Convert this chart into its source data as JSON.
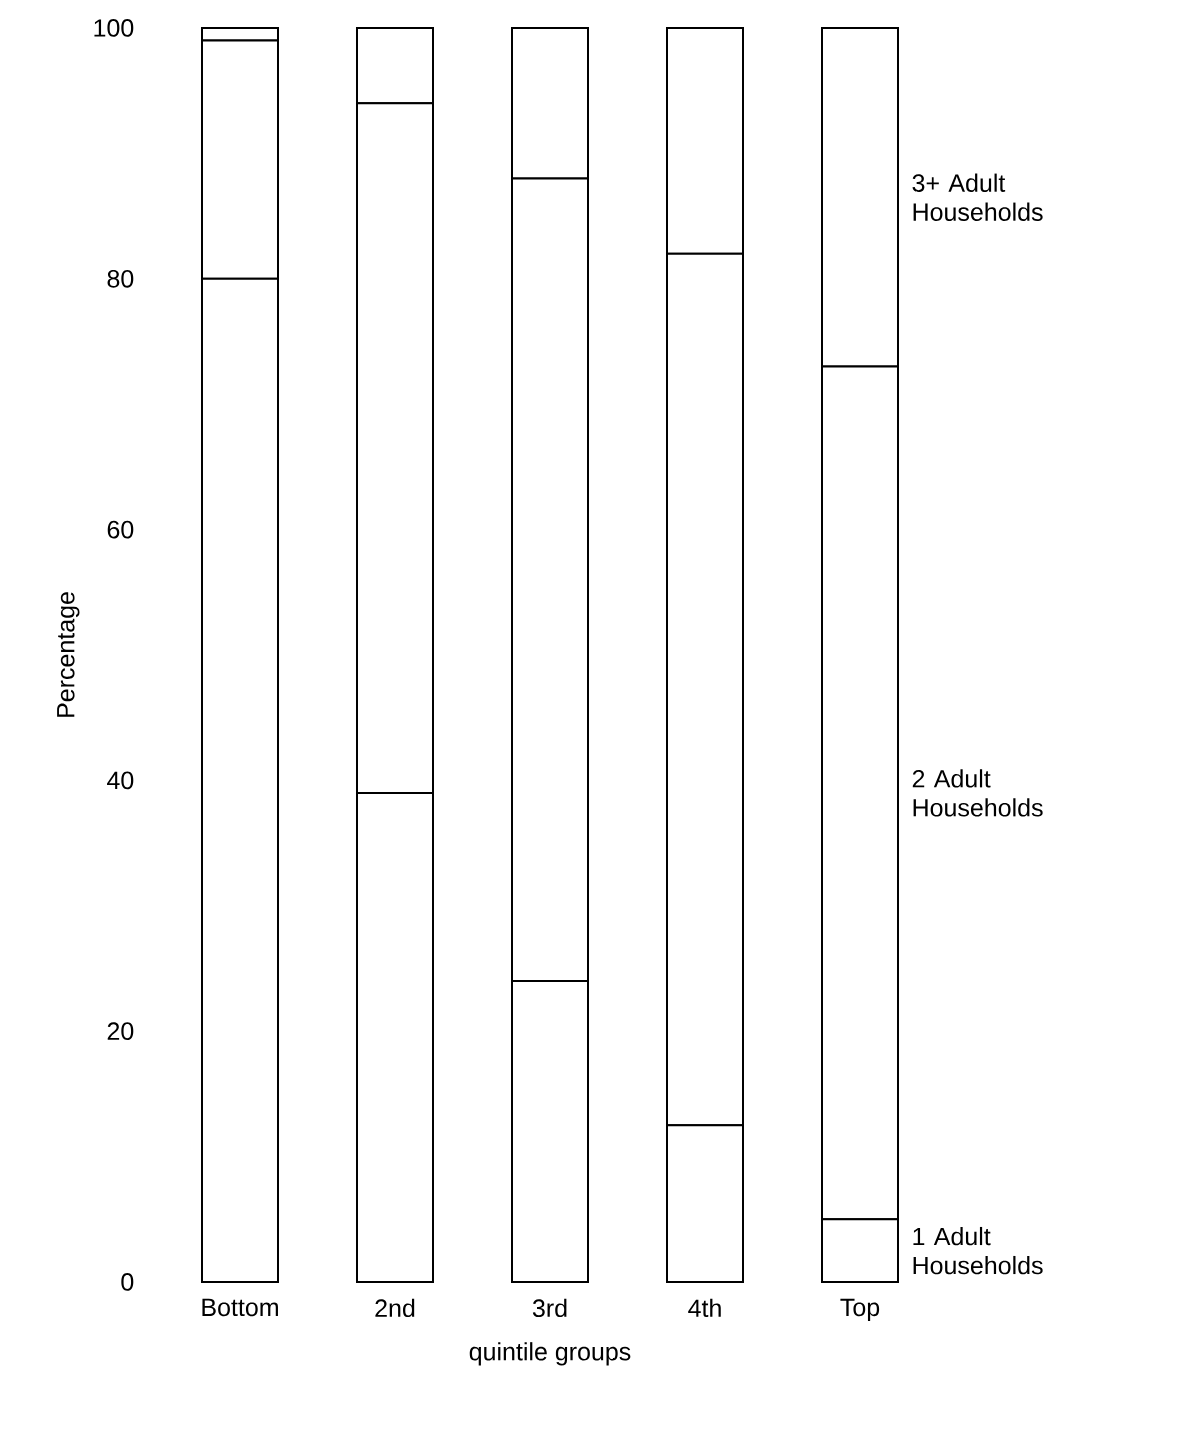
{
  "chart_data": {
    "type": "bar",
    "stacked": true,
    "xlabel": "quintile groups",
    "ylabel": "Percentage",
    "categories": [
      "Bottom",
      "2nd",
      "3rd",
      "4th",
      "Top"
    ],
    "series": [
      {
        "name": "1 Adult Households",
        "color": "#ffffff",
        "values": [
          80,
          39,
          24,
          12.5,
          5
        ]
      },
      {
        "name": "2 Adult Households",
        "color": "#ffffff",
        "values": [
          19,
          55,
          64,
          69.5,
          68
        ]
      },
      {
        "name": "3+ Adult Households",
        "color": "#ffffff",
        "values": [
          1,
          6,
          12,
          18,
          27
        ]
      }
    ],
    "ylim": [
      0,
      100
    ],
    "yticks": [
      0,
      20,
      40,
      60,
      80,
      100
    ],
    "grid": false,
    "legend": false
  }
}
